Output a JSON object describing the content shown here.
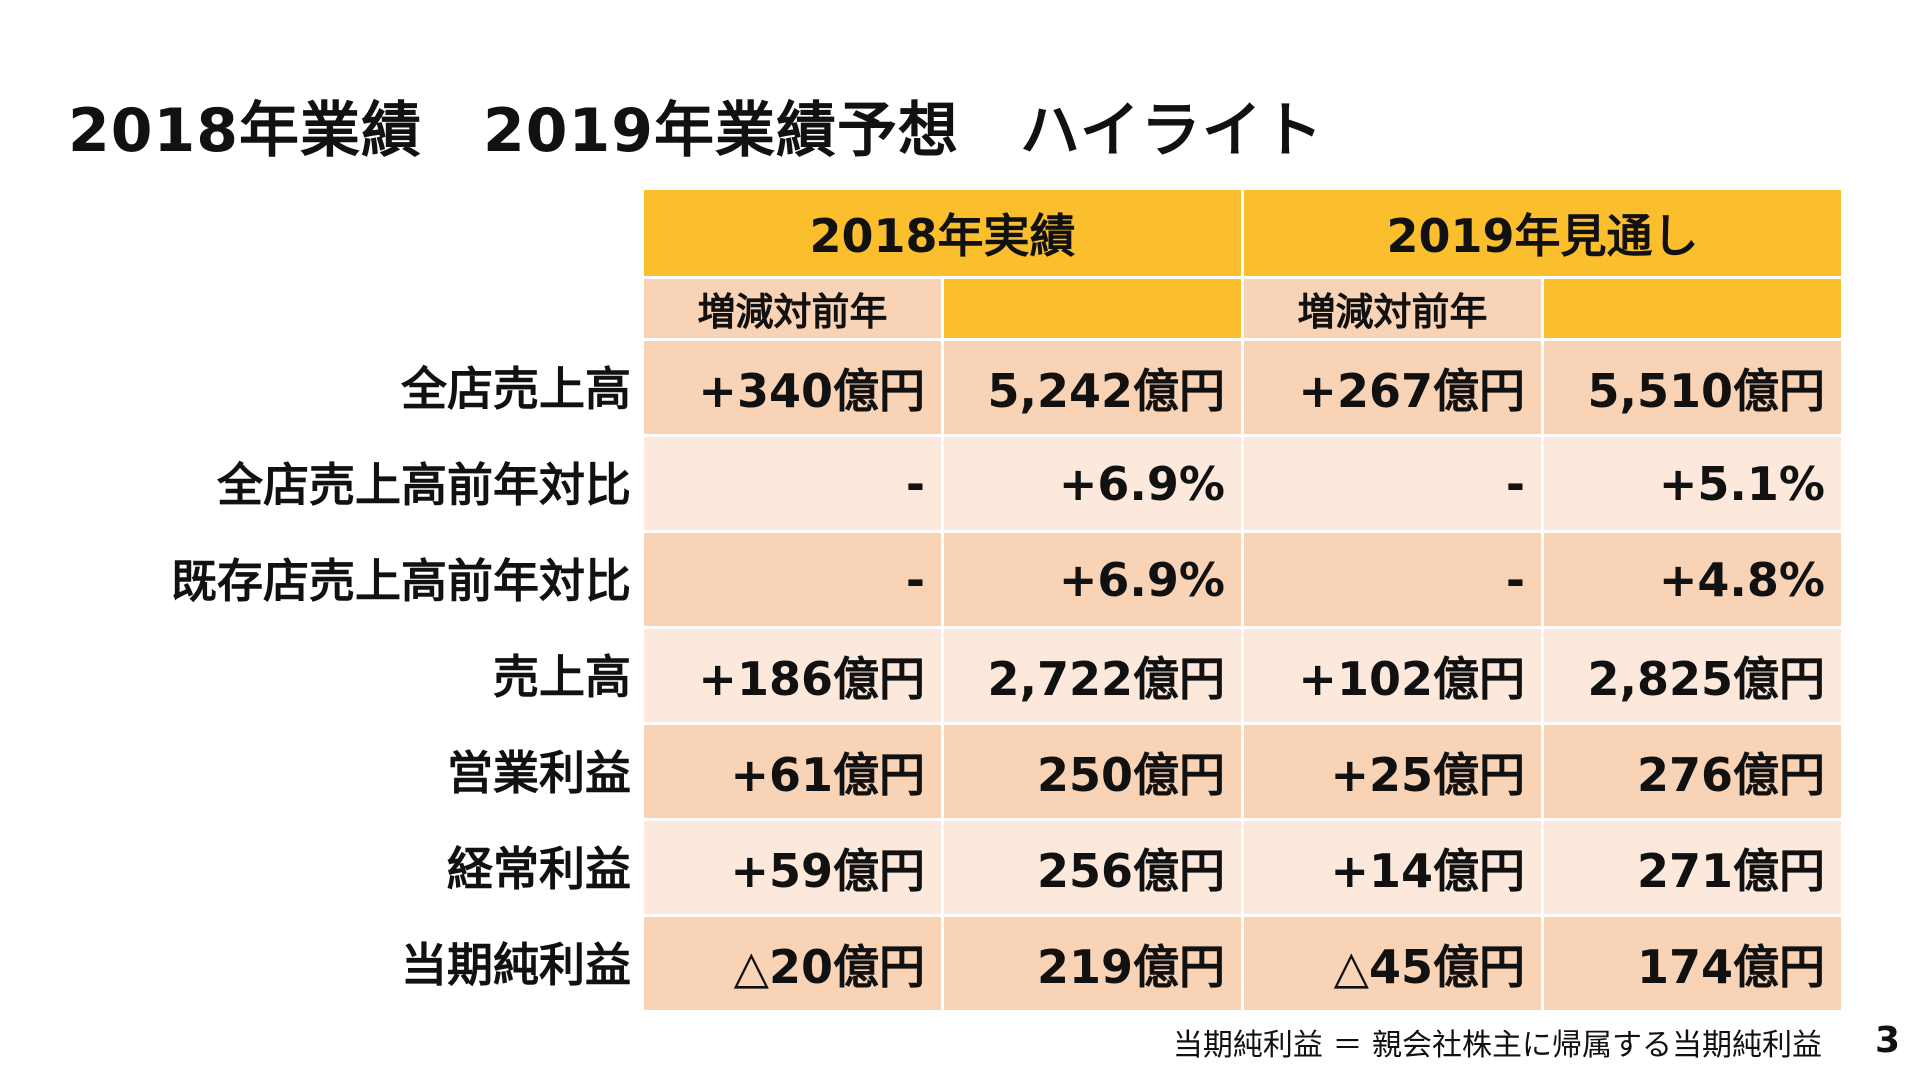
{
  "title": "2018年業績　2019年業績予想　ハイライト",
  "table": {
    "headers": {
      "year_2018": "2018年実績",
      "year_2019": "2019年見通し",
      "sub_change_2018": "増減対前年",
      "sub_change_2019": "増減対前年"
    },
    "rows": [
      {
        "label": "全店売上高",
        "c2018_change": "+340億円",
        "c2018_value": "5,242億円",
        "c2019_change": "+267億円",
        "c2019_value": "5,510億円"
      },
      {
        "label": "全店売上高前年対比",
        "c2018_change": "-",
        "c2018_value": "+6.9%",
        "c2019_change": "-",
        "c2019_value": "+5.1%"
      },
      {
        "label": "既存店売上高前年対比",
        "c2018_change": "-",
        "c2018_value": "+6.9%",
        "c2019_change": "-",
        "c2019_value": "+4.8%"
      },
      {
        "label": "売上高",
        "c2018_change": "+186億円",
        "c2018_value": "2,722億円",
        "c2019_change": "+102億円",
        "c2019_value": "2,825億円"
      },
      {
        "label": "営業利益",
        "c2018_change": "+61億円",
        "c2018_value": "250億円",
        "c2019_change": "+25億円",
        "c2019_value": "276億円"
      },
      {
        "label": "経常利益",
        "c2018_change": "+59億円",
        "c2018_value": "256億円",
        "c2019_change": "+14億円",
        "c2019_value": "271億円"
      },
      {
        "label": "当期純利益",
        "c2018_change": "△20億円",
        "c2018_value": "219億円",
        "c2019_change": "△45億円",
        "c2019_value": "174億円"
      }
    ]
  },
  "footnote": "当期純利益 ＝ 親会社株主に帰属する当期純利益",
  "page_number": "3",
  "colors": {
    "header_gold": "#fbbf2e",
    "row_dark": "#f9d3b6",
    "row_light": "#fce9dc"
  }
}
